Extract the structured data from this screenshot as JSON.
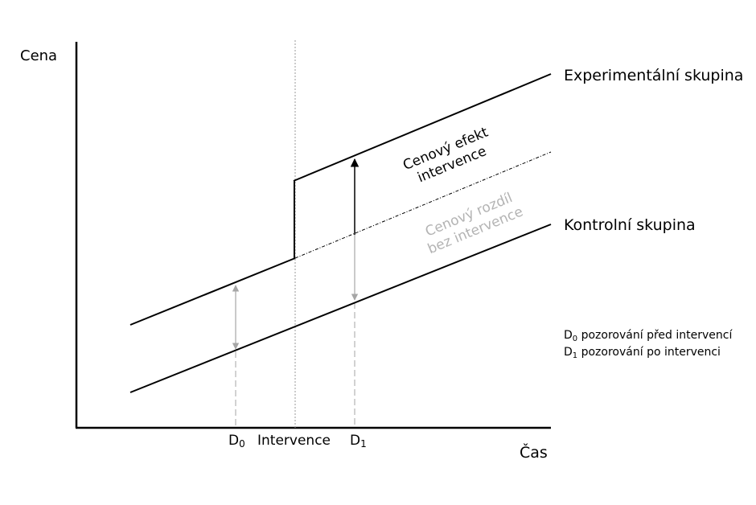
{
  "axes": {
    "y_label": "Cena",
    "x_label": "Čas"
  },
  "ticks": {
    "d0_main": "D",
    "d0_sub": "0",
    "intervention": "Intervence",
    "d1_main": "D",
    "d1_sub": "1"
  },
  "groups": {
    "experimental": "Experimentální skupina",
    "control": "Kontrolní skupina"
  },
  "annotations": {
    "price_effect_line1": "Cenový efekt",
    "price_effect_line2": "intervence",
    "price_diff_line1": "Cenový rozdíl",
    "price_diff_line2": "bez intervence"
  },
  "legend": {
    "d0_main": "D",
    "d0_sub": "0",
    "d0_text": " pozorování před intervencí",
    "d1_main": "D",
    "d1_sub": "1",
    "d1_text": " pozorování po intervenci"
  },
  "colors": {
    "line": "#000000",
    "gray": "#a6a6a6",
    "gray_text": "#b3b3b3"
  }
}
